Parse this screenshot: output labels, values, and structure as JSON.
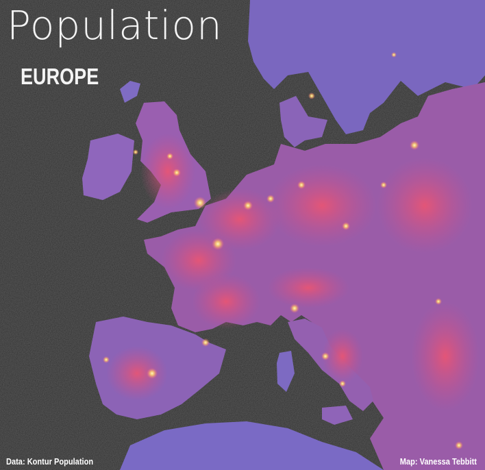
{
  "map": {
    "title": "Population",
    "subtitle": "EUROPE",
    "credit_data": "Data: Kontur Population",
    "credit_author": "Map: Vanessa Tebbitt"
  },
  "colors": {
    "background": "#2a2a2a",
    "low_density": "#7d6fc4",
    "mid_density": "#c45a95",
    "high_density": "#e8506e",
    "city_glow": "#ffe27a",
    "text": "#f4f4f4"
  }
}
